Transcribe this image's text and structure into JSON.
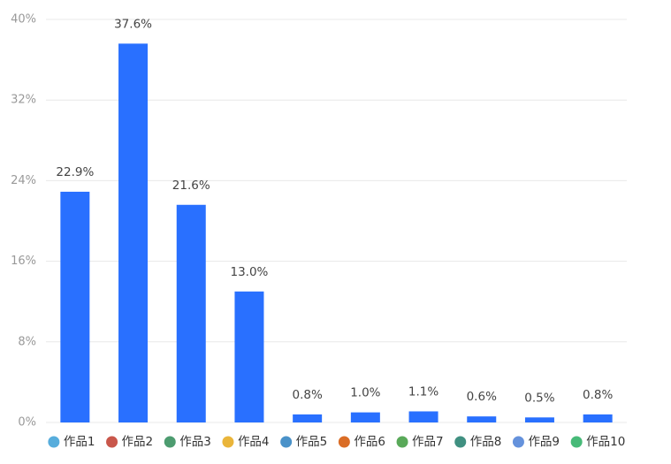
{
  "chart_data": {
    "type": "bar",
    "categories": [
      "作品1",
      "作品2",
      "作品3",
      "作品4",
      "作品5",
      "作品6",
      "作品7",
      "作品8",
      "作品9",
      "作品10"
    ],
    "values": [
      22.9,
      37.6,
      21.6,
      13.0,
      0.8,
      1.0,
      1.1,
      0.6,
      0.5,
      0.8
    ],
    "value_labels": [
      "22.9%",
      "37.6%",
      "21.6%",
      "13.0%",
      "0.8%",
      "1.0%",
      "1.1%",
      "0.6%",
      "0.5%",
      "0.8%"
    ],
    "color": "#2970ff",
    "ylim": [
      0,
      40
    ],
    "yticks": [
      {
        "value": 0,
        "label": "0%"
      },
      {
        "value": 8,
        "label": "8%"
      },
      {
        "value": 16,
        "label": "16%"
      },
      {
        "value": 24,
        "label": "24%"
      },
      {
        "value": 32,
        "label": "32%"
      },
      {
        "value": 40,
        "label": "40%"
      }
    ],
    "grid": true
  }
}
